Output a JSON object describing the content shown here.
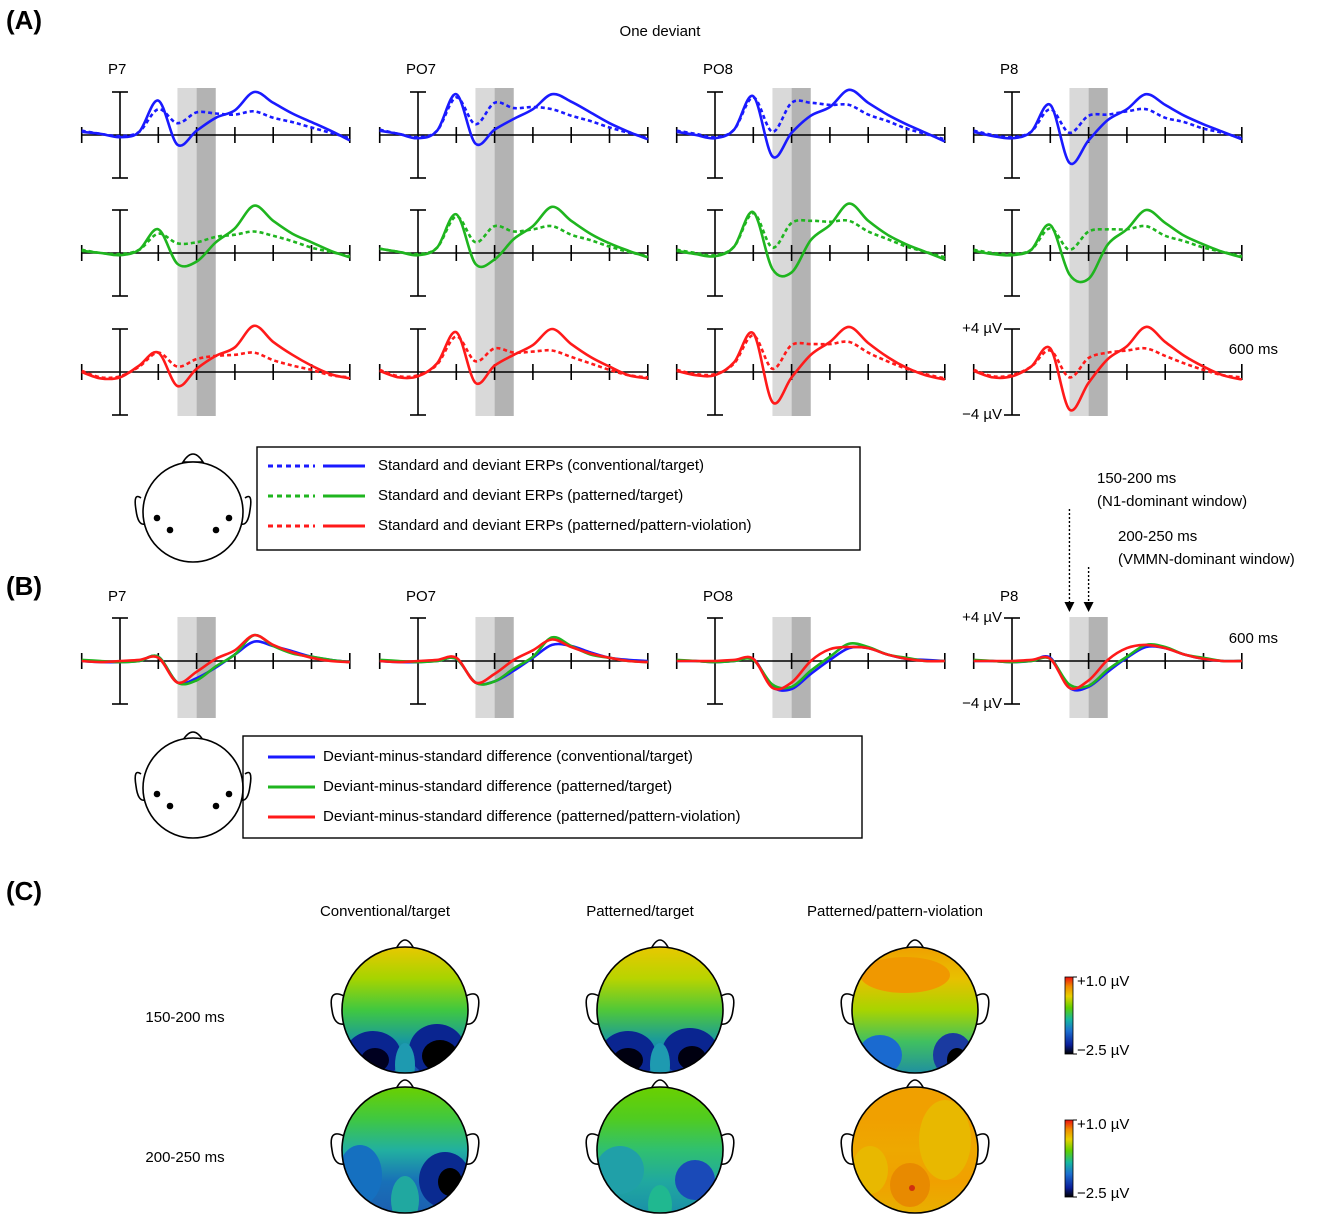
{
  "panel_labels": [
    "(A)",
    "(B)",
    "(C)"
  ],
  "chart_data": [
    {
      "type": "line",
      "title": "One deviant",
      "electrodes": [
        "P7",
        "PO7",
        "PO8",
        "P8"
      ],
      "x": [
        -100,
        -50,
        0,
        50,
        100,
        150,
        200,
        250,
        300,
        350,
        400,
        450,
        500,
        550,
        600
      ],
      "xlim": [
        -100,
        600
      ],
      "ylim": [
        -4,
        4
      ],
      "xticks": [
        {
          "value": -100,
          "label": null
        },
        {
          "value": 100,
          "label": null
        },
        {
          "value": 200,
          "label": null
        },
        {
          "value": 300,
          "label": null
        },
        {
          "value": 400,
          "label": null
        },
        {
          "value": 500,
          "label": null
        },
        {
          "value": 600,
          "label": "600 ms"
        }
      ],
      "yticks": [
        {
          "value": 4,
          "label": "+4 µV"
        },
        {
          "value": -4,
          "label": "−4 µV"
        }
      ],
      "windows": [
        {
          "label": "150-200 ms",
          "sublabel": "(N1-dominant window)",
          "range": [
            150,
            200
          ],
          "color": "#d9d9d9"
        },
        {
          "label": "200-250 ms",
          "sublabel": "(VMMN-dominant window)",
          "range": [
            200,
            250
          ],
          "color": "#b3b3b3"
        }
      ],
      "rows": [
        {
          "name": "Standard and deviant ERPs (conventional/target)",
          "color": "#1a1aff",
          "standard": [
            [
              0.4,
              0.1,
              -0.1,
              0.3,
              2.4,
              1.1,
              2.1,
              2.0,
              1.9,
              2.2,
              1.6,
              1.2,
              0.7,
              0.2,
              -0.3
            ],
            [
              0.5,
              0.1,
              -0.2,
              0.4,
              3.5,
              1.0,
              3.0,
              2.5,
              2.6,
              2.4,
              1.8,
              1.3,
              0.7,
              0.2,
              -0.3
            ],
            [
              0.4,
              0.1,
              -0.2,
              0.5,
              3.5,
              0.3,
              3.0,
              3.0,
              2.8,
              2.8,
              1.9,
              1.3,
              0.6,
              0.1,
              -0.4
            ],
            [
              0.4,
              0.0,
              -0.2,
              0.3,
              2.4,
              0.2,
              1.8,
              1.9,
              2.2,
              2.4,
              1.6,
              1.2,
              0.6,
              0.2,
              -0.3
            ]
          ],
          "deviant": [
            [
              0.3,
              0.1,
              -0.2,
              0.3,
              3.2,
              -0.9,
              0.4,
              1.6,
              2.3,
              4.0,
              3.0,
              2.0,
              1.2,
              0.4,
              -0.5
            ],
            [
              0.4,
              0.1,
              -0.3,
              0.4,
              3.8,
              -0.8,
              0.5,
              1.5,
              2.4,
              3.8,
              3.1,
              2.1,
              1.1,
              0.3,
              -0.4
            ],
            [
              0.3,
              0.0,
              -0.3,
              0.5,
              3.6,
              -2.0,
              0.2,
              1.8,
              2.6,
              4.2,
              3.0,
              1.9,
              1.0,
              0.2,
              -0.6
            ],
            [
              0.3,
              -0.1,
              -0.3,
              0.3,
              2.8,
              -2.6,
              -0.5,
              1.4,
              2.4,
              3.8,
              2.8,
              1.8,
              1.0,
              0.3,
              -0.4
            ]
          ]
        },
        {
          "name": "Standard and deviant ERPs (patterned/target)",
          "color": "#1fb51f",
          "standard": [
            [
              0.3,
              0.0,
              -0.1,
              0.3,
              1.8,
              0.9,
              1.0,
              1.5,
              1.7,
              2.0,
              1.6,
              1.1,
              0.5,
              0.1,
              -0.3
            ],
            [
              0.4,
              0.1,
              -0.1,
              0.5,
              3.4,
              1.0,
              2.5,
              2.0,
              2.2,
              2.5,
              1.7,
              1.2,
              0.6,
              0.1,
              -0.3
            ],
            [
              0.3,
              0.0,
              -0.2,
              0.6,
              3.7,
              0.5,
              2.8,
              3.0,
              2.9,
              3.0,
              2.0,
              1.3,
              0.6,
              0.1,
              -0.4
            ],
            [
              0.3,
              0.0,
              -0.1,
              0.3,
              2.3,
              0.3,
              2.0,
              2.2,
              2.2,
              2.5,
              1.6,
              1.1,
              0.5,
              0.1,
              -0.3
            ]
          ],
          "deviant": [
            [
              0.2,
              0.0,
              -0.2,
              0.3,
              2.2,
              -1.0,
              -0.8,
              1.0,
              2.3,
              4.4,
              3.0,
              1.8,
              1.0,
              0.2,
              -0.4
            ],
            [
              0.4,
              0.1,
              -0.2,
              0.5,
              3.6,
              -1.0,
              -0.6,
              1.3,
              2.5,
              4.3,
              3.0,
              1.8,
              0.9,
              0.2,
              -0.4
            ],
            [
              0.2,
              -0.1,
              -0.3,
              0.6,
              3.8,
              -1.5,
              -1.8,
              1.2,
              2.6,
              4.6,
              3.0,
              1.7,
              0.8,
              0.1,
              -0.6
            ],
            [
              0.2,
              -0.1,
              -0.2,
              0.3,
              2.6,
              -2.0,
              -2.4,
              0.8,
              2.2,
              4.0,
              2.8,
              1.6,
              0.8,
              0.1,
              -0.4
            ]
          ]
        },
        {
          "name": "Standard and deviant ERPs (patterned/pattern-violation)",
          "color": "#ff1a1a",
          "standard": [
            [
              0.1,
              -0.5,
              -0.4,
              0.5,
              1.8,
              0.5,
              1.2,
              1.5,
              1.6,
              1.8,
              1.1,
              0.6,
              0.2,
              -0.3,
              -0.5
            ],
            [
              0.2,
              -0.4,
              -0.3,
              0.7,
              3.3,
              1.0,
              2.2,
              1.8,
              1.9,
              2.0,
              1.4,
              0.8,
              0.2,
              -0.3,
              -0.5
            ],
            [
              0.2,
              -0.2,
              -0.2,
              0.8,
              3.4,
              0.3,
              2.5,
              2.6,
              2.6,
              2.8,
              1.8,
              1.0,
              0.3,
              -0.2,
              -0.6
            ],
            [
              0.2,
              -0.4,
              -0.3,
              0.5,
              2.0,
              -0.5,
              1.3,
              1.8,
              2.0,
              2.2,
              1.5,
              0.8,
              0.2,
              -0.3,
              -0.5
            ]
          ],
          "deviant": [
            [
              0.0,
              -0.6,
              -0.5,
              0.6,
              1.8,
              -1.3,
              0.3,
              1.5,
              2.3,
              4.3,
              2.8,
              1.6,
              0.6,
              -0.2,
              -0.6
            ],
            [
              0.1,
              -0.5,
              -0.4,
              0.8,
              3.7,
              -1.0,
              0.6,
              1.6,
              2.5,
              4.0,
              2.6,
              1.4,
              0.5,
              -0.3,
              -0.6
            ],
            [
              0.1,
              -0.3,
              -0.3,
              0.9,
              3.6,
              -2.8,
              -0.5,
              1.6,
              2.8,
              4.2,
              2.7,
              1.4,
              0.4,
              -0.3,
              -0.7
            ],
            [
              0.1,
              -0.5,
              -0.4,
              0.5,
              2.2,
              -3.5,
              -1.0,
              1.2,
              2.4,
              4.2,
              2.8,
              1.5,
              0.5,
              -0.3,
              -0.7
            ]
          ]
        }
      ]
    },
    {
      "type": "line",
      "electrodes": [
        "P7",
        "PO7",
        "PO8",
        "P8"
      ],
      "x": [
        -100,
        -50,
        0,
        50,
        100,
        150,
        200,
        250,
        300,
        350,
        400,
        450,
        500,
        550,
        600
      ],
      "xlim": [
        -100,
        600
      ],
      "ylim": [
        -4,
        4
      ],
      "xticks": [
        {
          "value": -100,
          "label": null
        },
        {
          "value": 100,
          "label": null
        },
        {
          "value": 200,
          "label": null
        },
        {
          "value": 300,
          "label": null
        },
        {
          "value": 400,
          "label": null
        },
        {
          "value": 500,
          "label": null
        },
        {
          "value": 600,
          "label": "600 ms"
        }
      ],
      "yticks": [
        {
          "value": 4,
          "label": "+4 µV"
        },
        {
          "value": -4,
          "label": "−4 µV"
        }
      ],
      "series": [
        {
          "name": "Deviant-minus-standard difference (conventional/target)",
          "color": "#1a1aff",
          "values": [
            [
              0.0,
              -0.1,
              -0.1,
              0.0,
              0.4,
              -2.0,
              -1.6,
              -0.6,
              0.6,
              1.8,
              1.4,
              0.9,
              0.4,
              0.1,
              -0.1
            ],
            [
              0.0,
              -0.1,
              -0.1,
              0.0,
              0.2,
              -2.0,
              -1.9,
              -0.9,
              0.3,
              1.5,
              1.4,
              0.8,
              0.3,
              0.1,
              0.0
            ],
            [
              0.0,
              0.0,
              -0.1,
              0.0,
              0.2,
              -2.4,
              -2.6,
              -1.2,
              0.1,
              1.2,
              1.2,
              0.6,
              0.2,
              0.1,
              0.0
            ],
            [
              0.0,
              0.0,
              -0.1,
              0.0,
              0.3,
              -2.5,
              -2.4,
              -1.0,
              0.3,
              1.3,
              1.2,
              0.6,
              0.2,
              0.0,
              0.0
            ]
          ]
        },
        {
          "name": "Deviant-minus-standard difference (patterned/target)",
          "color": "#1fb51f",
          "values": [
            [
              0.1,
              0.0,
              -0.1,
              0.0,
              0.4,
              -2.0,
              -1.8,
              -0.5,
              0.6,
              2.4,
              1.4,
              0.7,
              0.4,
              0.1,
              -0.1
            ],
            [
              0.1,
              0.0,
              -0.1,
              0.0,
              0.2,
              -2.0,
              -1.9,
              -0.7,
              0.4,
              2.2,
              1.4,
              0.6,
              0.3,
              0.0,
              -0.1
            ],
            [
              0.1,
              0.0,
              -0.1,
              0.0,
              0.1,
              -2.2,
              -2.4,
              -0.9,
              0.4,
              1.6,
              1.3,
              0.6,
              0.3,
              0.0,
              0.0
            ],
            [
              0.1,
              0.0,
              -0.1,
              0.0,
              0.2,
              -2.2,
              -2.3,
              -0.8,
              0.4,
              1.5,
              1.3,
              0.6,
              0.3,
              0.0,
              0.0
            ]
          ]
        },
        {
          "name": "Deviant-minus-standard difference (patterned/pattern-violation)",
          "color": "#ff1a1a",
          "values": [
            [
              0.0,
              -0.1,
              0.0,
              0.1,
              0.3,
              -2.0,
              -1.0,
              0.2,
              1.0,
              2.4,
              1.5,
              0.8,
              0.3,
              0.0,
              -0.1
            ],
            [
              0.0,
              -0.1,
              0.0,
              0.1,
              0.3,
              -2.0,
              -1.2,
              0.1,
              1.0,
              2.0,
              1.3,
              0.7,
              0.3,
              0.0,
              -0.1
            ],
            [
              0.0,
              0.0,
              0.0,
              0.1,
              0.2,
              -2.5,
              -2.0,
              0.0,
              1.1,
              1.3,
              1.2,
              0.6,
              0.2,
              0.0,
              0.0
            ],
            [
              0.0,
              0.0,
              0.0,
              0.1,
              0.2,
              -2.5,
              -1.8,
              0.1,
              1.2,
              1.5,
              1.2,
              0.6,
              0.2,
              0.0,
              0.0
            ]
          ]
        }
      ]
    }
  ],
  "topomaps": {
    "columns": [
      "Conventional/target",
      "Patterned/target",
      "Patterned/pattern-violation"
    ],
    "rows": [
      "150-200 ms",
      "200-250 ms"
    ],
    "colorbar_ticks": [
      {
        "value": 1.0,
        "label": "+1.0 µV"
      },
      {
        "value": -2.5,
        "label": "−2.5 µV"
      }
    ]
  }
}
